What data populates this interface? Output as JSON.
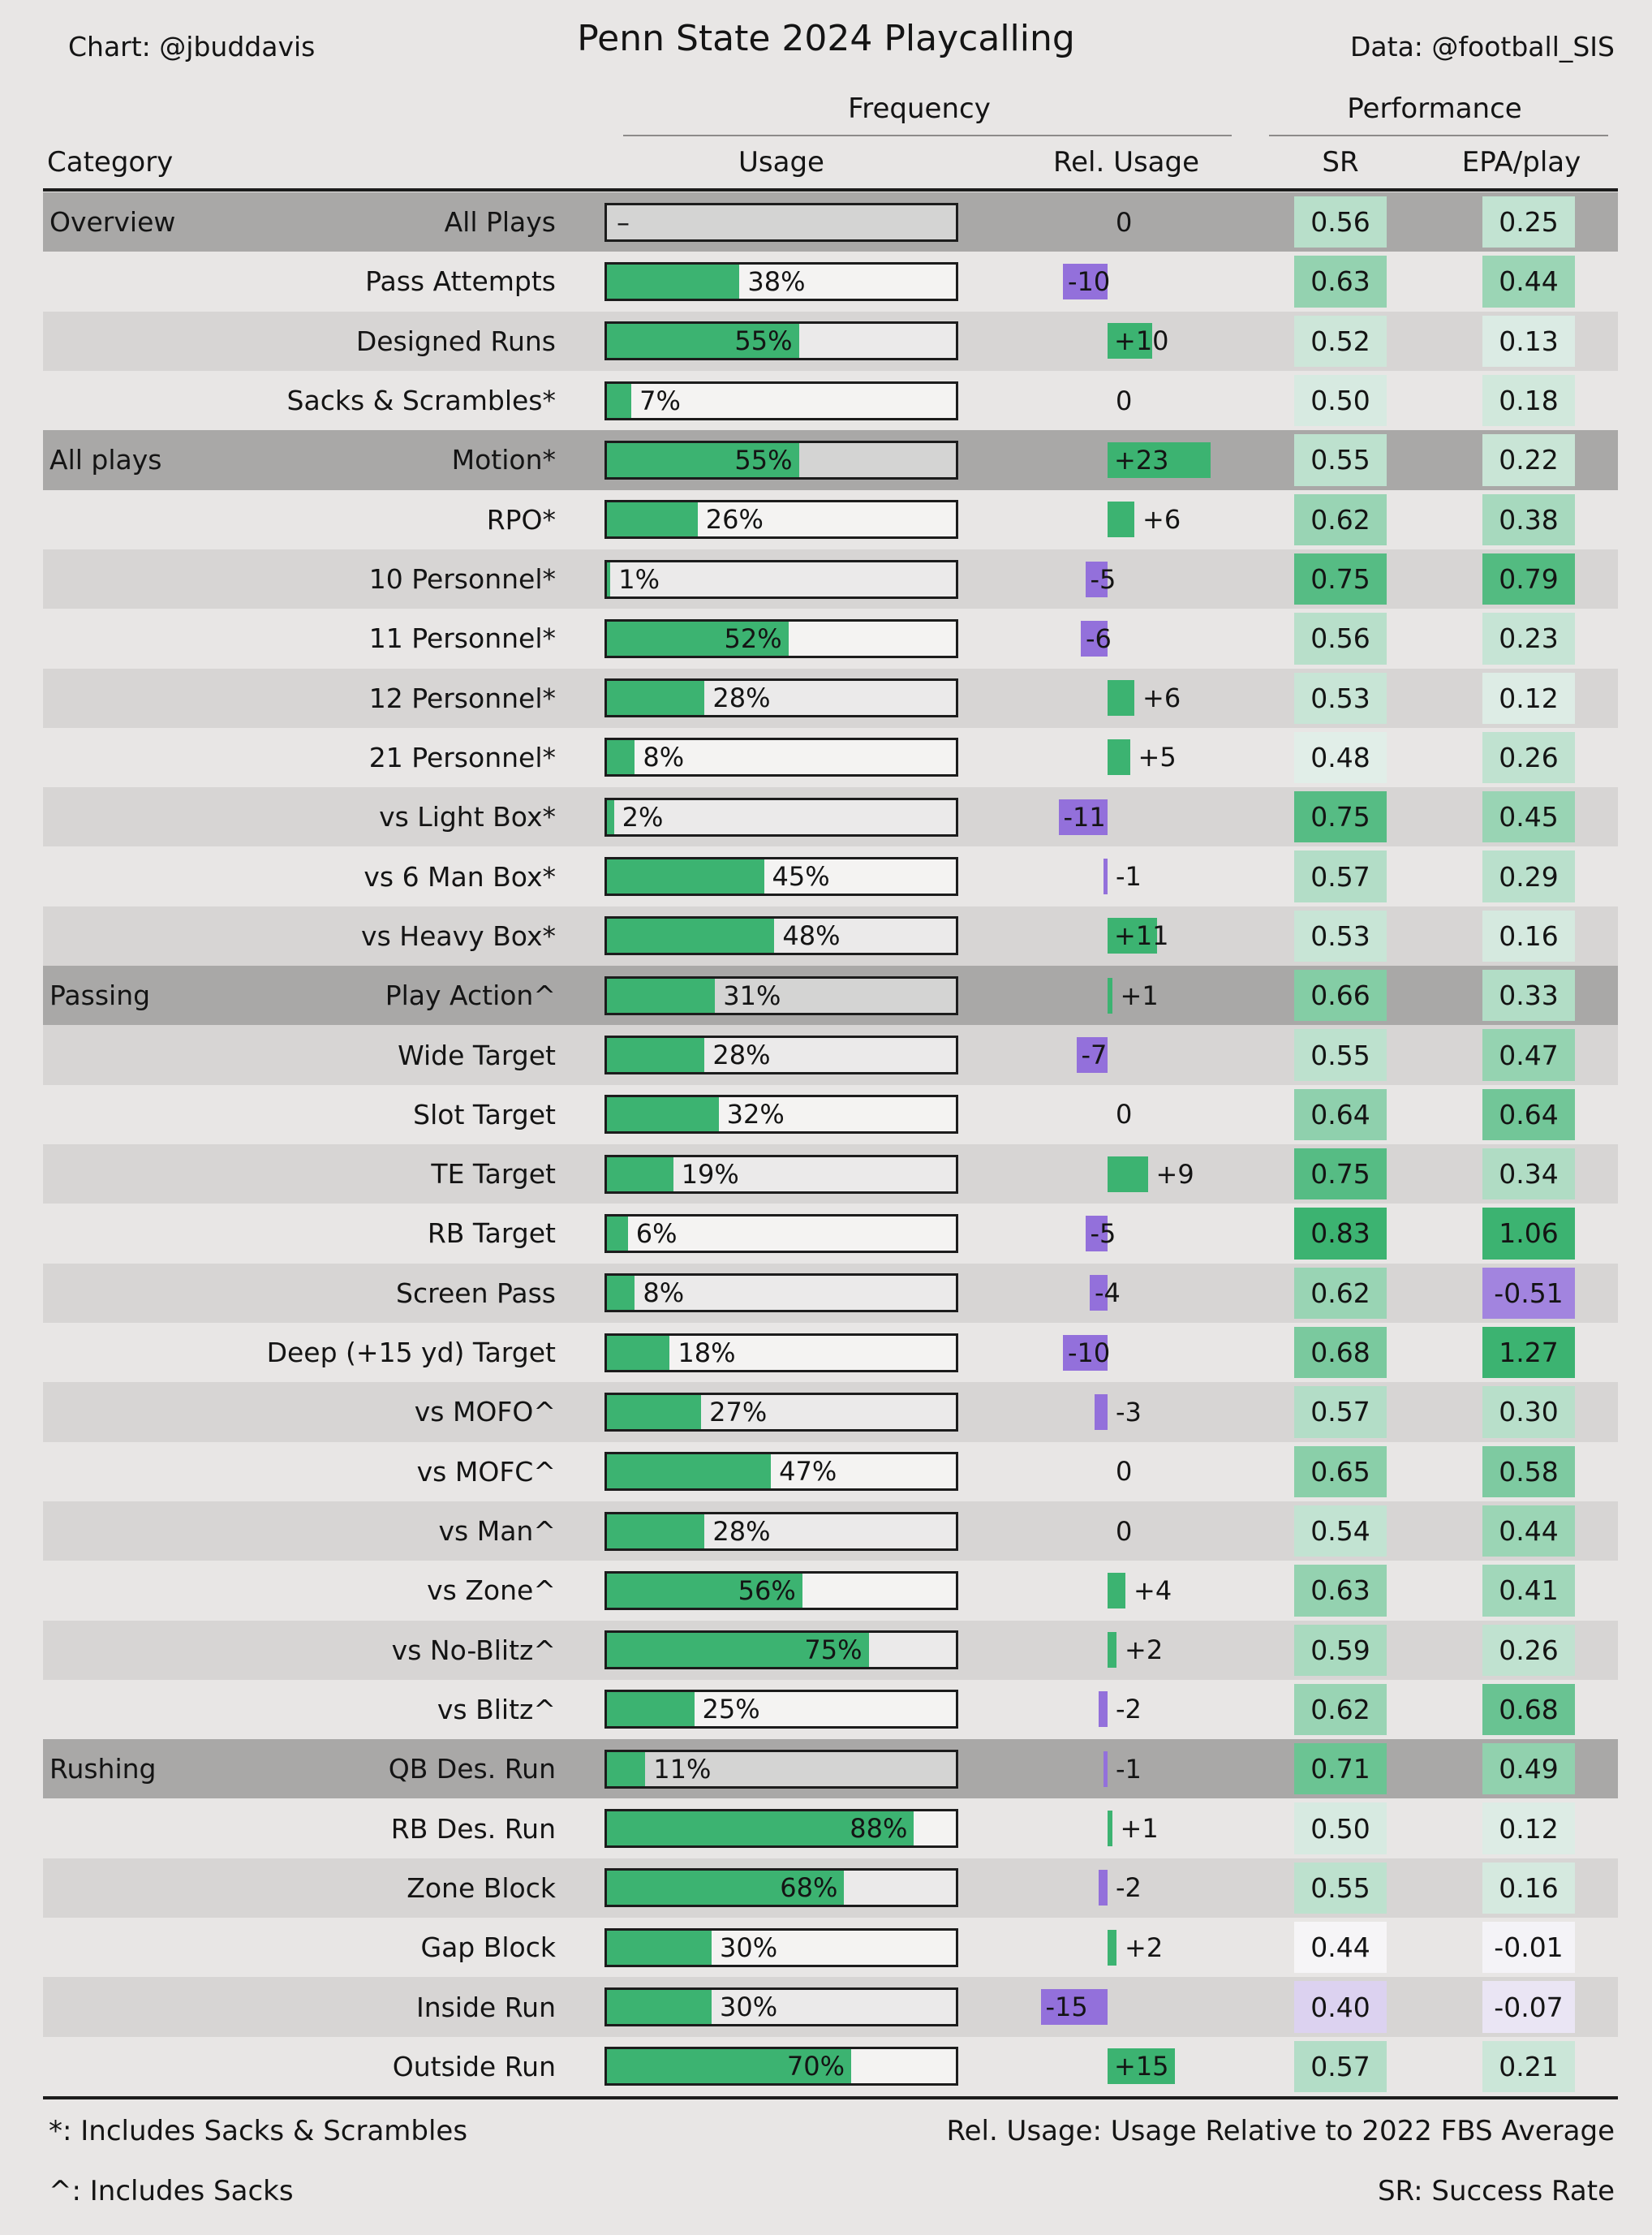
{
  "header": {
    "credit_left": "Chart: @jbuddavis",
    "title": "Penn State 2024 Playcalling",
    "credit_right": "Data: @football_SIS"
  },
  "column_headers": {
    "frequency_group": "Frequency",
    "performance_group": "Performance",
    "category": "Category",
    "usage": "Usage",
    "rel_usage": "Rel. Usage",
    "sr": "SR",
    "epa": "EPA/play"
  },
  "footnotes": {
    "note_asterisk": "*: Includes Sacks & Scrambles",
    "note_caret": "^: Includes Sacks",
    "note_rel_usage": "Rel. Usage: Usage Relative to 2022 FBS Average",
    "note_sr": "SR: Success Rate"
  },
  "colors": {
    "bar_green": "#3cb371",
    "bar_purple": "#9370db",
    "cell_white": "#f6f5f7",
    "row_dark": "#d7d5d4",
    "row_light": "#e8e6e5",
    "row_group": "#a9a8a7",
    "text": "#141414"
  },
  "chart_data": {
    "type": "table",
    "title": "Penn State 2024 Playcalling",
    "column_groups": [
      {
        "label": "Frequency",
        "columns": [
          "Usage",
          "Rel. Usage"
        ]
      },
      {
        "label": "Performance",
        "columns": [
          "SR",
          "EPA/play"
        ]
      }
    ],
    "columns": [
      "Category",
      "Usage",
      "Rel. Usage",
      "SR",
      "EPA/play"
    ],
    "usage_axis": {
      "min": 0,
      "max": 100,
      "unit": "%"
    },
    "rel_usage_note": "Usage relative to 2022 FBS average, percentage points; green positive, purple negative",
    "rows": [
      {
        "group": "Overview",
        "label": "All Plays",
        "usage_pct": null,
        "rel_usage": 0,
        "sr": 0.56,
        "epa": 0.25
      },
      {
        "group": "",
        "label": "Pass Attempts",
        "usage_pct": 38,
        "rel_usage": -10,
        "sr": 0.63,
        "epa": 0.44
      },
      {
        "group": "",
        "label": "Designed Runs",
        "usage_pct": 55,
        "rel_usage": 10,
        "sr": 0.52,
        "epa": 0.13
      },
      {
        "group": "",
        "label": "Sacks & Scrambles*",
        "usage_pct": 7,
        "rel_usage": 0,
        "sr": 0.5,
        "epa": 0.18
      },
      {
        "group": "All plays",
        "label": "Motion*",
        "usage_pct": 55,
        "rel_usage": 23,
        "sr": 0.55,
        "epa": 0.22
      },
      {
        "group": "",
        "label": "RPO*",
        "usage_pct": 26,
        "rel_usage": 6,
        "sr": 0.62,
        "epa": 0.38
      },
      {
        "group": "",
        "label": "10 Personnel*",
        "usage_pct": 1,
        "rel_usage": -5,
        "sr": 0.75,
        "epa": 0.79
      },
      {
        "group": "",
        "label": "11 Personnel*",
        "usage_pct": 52,
        "rel_usage": -6,
        "sr": 0.56,
        "epa": 0.23
      },
      {
        "group": "",
        "label": "12 Personnel*",
        "usage_pct": 28,
        "rel_usage": 6,
        "sr": 0.53,
        "epa": 0.12
      },
      {
        "group": "",
        "label": "21 Personnel*",
        "usage_pct": 8,
        "rel_usage": 5,
        "sr": 0.48,
        "epa": 0.26
      },
      {
        "group": "",
        "label": "vs Light Box*",
        "usage_pct": 2,
        "rel_usage": -11,
        "sr": 0.75,
        "epa": 0.45
      },
      {
        "group": "",
        "label": "vs 6 Man Box*",
        "usage_pct": 45,
        "rel_usage": -1,
        "sr": 0.57,
        "epa": 0.29
      },
      {
        "group": "",
        "label": "vs Heavy Box*",
        "usage_pct": 48,
        "rel_usage": 11,
        "sr": 0.53,
        "epa": 0.16
      },
      {
        "group": "Passing",
        "label": "Play Action^",
        "usage_pct": 31,
        "rel_usage": 1,
        "sr": 0.66,
        "epa": 0.33
      },
      {
        "group": "",
        "label": "Wide Target",
        "usage_pct": 28,
        "rel_usage": -7,
        "sr": 0.55,
        "epa": 0.47
      },
      {
        "group": "",
        "label": "Slot Target",
        "usage_pct": 32,
        "rel_usage": 0,
        "sr": 0.64,
        "epa": 0.64
      },
      {
        "group": "",
        "label": "TE Target",
        "usage_pct": 19,
        "rel_usage": 9,
        "sr": 0.75,
        "epa": 0.34
      },
      {
        "group": "",
        "label": "RB Target",
        "usage_pct": 6,
        "rel_usage": -5,
        "sr": 0.83,
        "epa": 1.06
      },
      {
        "group": "",
        "label": "Screen Pass",
        "usage_pct": 8,
        "rel_usage": -4,
        "sr": 0.62,
        "epa": -0.51
      },
      {
        "group": "",
        "label": "Deep (+15 yd) Target",
        "usage_pct": 18,
        "rel_usage": -10,
        "sr": 0.68,
        "epa": 1.27
      },
      {
        "group": "",
        "label": "vs MOFO^",
        "usage_pct": 27,
        "rel_usage": -3,
        "sr": 0.57,
        "epa": 0.3
      },
      {
        "group": "",
        "label": "vs MOFC^",
        "usage_pct": 47,
        "rel_usage": 0,
        "sr": 0.65,
        "epa": 0.58
      },
      {
        "group": "",
        "label": "vs Man^",
        "usage_pct": 28,
        "rel_usage": 0,
        "sr": 0.54,
        "epa": 0.44
      },
      {
        "group": "",
        "label": "vs Zone^",
        "usage_pct": 56,
        "rel_usage": 4,
        "sr": 0.63,
        "epa": 0.41
      },
      {
        "group": "",
        "label": "vs No-Blitz^",
        "usage_pct": 75,
        "rel_usage": 2,
        "sr": 0.59,
        "epa": 0.26
      },
      {
        "group": "",
        "label": "vs Blitz^",
        "usage_pct": 25,
        "rel_usage": -2,
        "sr": 0.62,
        "epa": 0.68
      },
      {
        "group": "Rushing",
        "label": "QB Des. Run",
        "usage_pct": 11,
        "rel_usage": -1,
        "sr": 0.71,
        "epa": 0.49
      },
      {
        "group": "",
        "label": "RB Des. Run",
        "usage_pct": 88,
        "rel_usage": 1,
        "sr": 0.5,
        "epa": 0.12
      },
      {
        "group": "",
        "label": "Zone Block",
        "usage_pct": 68,
        "rel_usage": -2,
        "sr": 0.55,
        "epa": 0.16
      },
      {
        "group": "",
        "label": "Gap Block",
        "usage_pct": 30,
        "rel_usage": 2,
        "sr": 0.44,
        "epa": -0.01
      },
      {
        "group": "",
        "label": "Inside Run",
        "usage_pct": 30,
        "rel_usage": -15,
        "sr": 0.4,
        "epa": -0.07
      },
      {
        "group": "",
        "label": "Outside Run",
        "usage_pct": 70,
        "rel_usage": 15,
        "sr": 0.57,
        "epa": 0.21
      }
    ]
  }
}
